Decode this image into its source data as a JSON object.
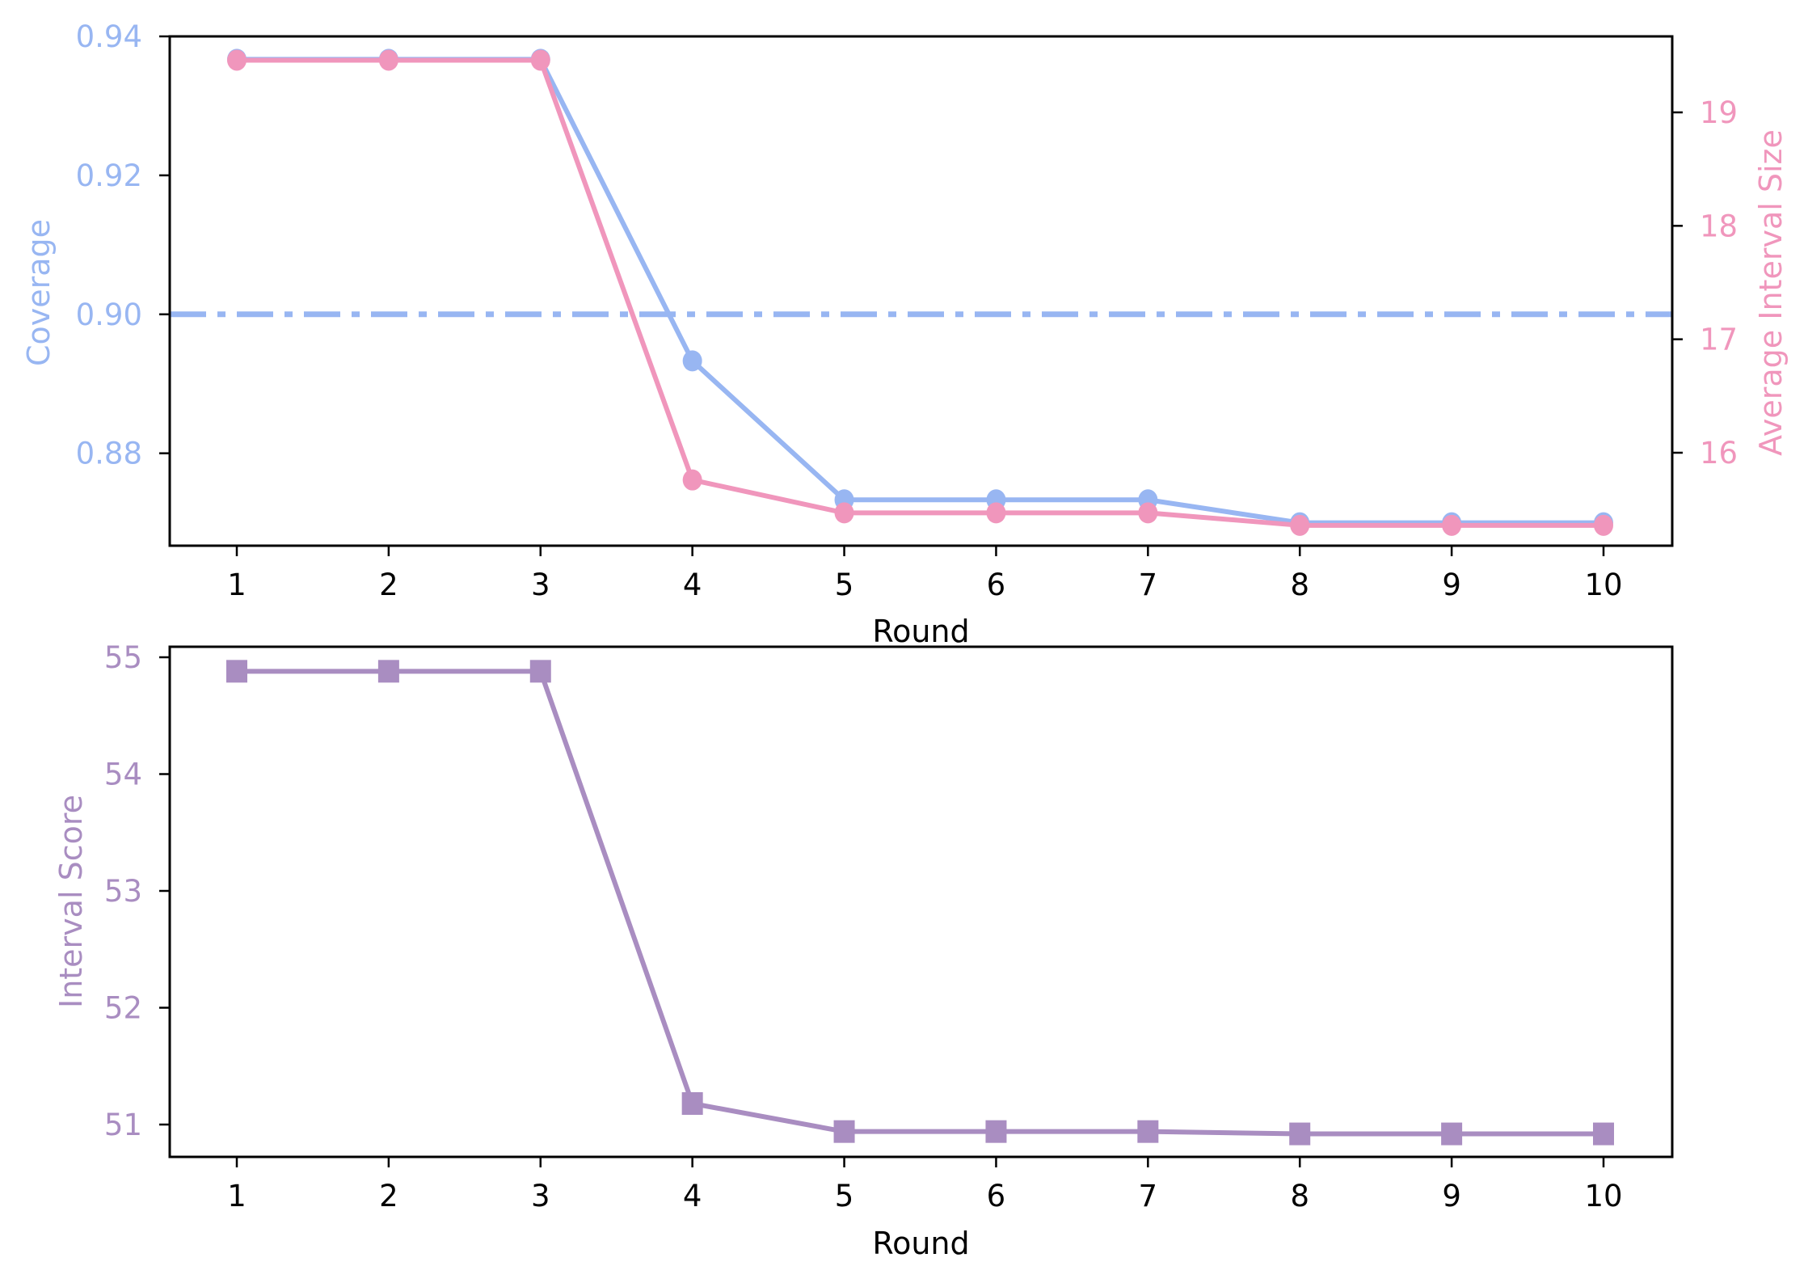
{
  "colors": {
    "coverage": "#98b6f2",
    "avg_interval_size": "#f096bc",
    "interval_score": "#a98dc1",
    "axis": "#000000",
    "text": "#000000"
  },
  "top_panel": {
    "xlabel": "Round",
    "ylabel_left": "Coverage",
    "ylabel_right": "Average Interval Size",
    "x_ticks": [
      "1",
      "2",
      "3",
      "4",
      "5",
      "6",
      "7",
      "8",
      "9",
      "10"
    ],
    "y_left_ticks": [
      "0.94",
      "0.92",
      "0.90",
      "0.88"
    ],
    "y_right_ticks": [
      "19",
      "18",
      "17",
      "16"
    ]
  },
  "bottom_panel": {
    "xlabel": "Round",
    "ylabel": "Interval Score",
    "x_ticks": [
      "1",
      "2",
      "3",
      "4",
      "5",
      "6",
      "7",
      "8",
      "9",
      "10"
    ],
    "y_ticks": [
      "55",
      "54",
      "53",
      "52",
      "51"
    ]
  },
  "chart_data": [
    {
      "type": "line",
      "title": "",
      "xlabel": "Round",
      "ylabel": "Coverage",
      "ylabel_right": "Average Interval Size",
      "x": [
        1,
        2,
        3,
        4,
        5,
        6,
        7,
        8,
        9,
        10
      ],
      "series": [
        {
          "name": "Coverage",
          "axis": "left",
          "marker": "circle",
          "color": "#98b6f2",
          "values": [
            0.9367,
            0.9367,
            0.9367,
            0.8933,
            0.8733,
            0.8733,
            0.8733,
            0.87,
            0.87,
            0.87
          ]
        },
        {
          "name": "Average Interval Size",
          "axis": "right",
          "marker": "circle",
          "color": "#f096bc",
          "values": [
            19.46,
            19.46,
            19.46,
            15.76,
            15.47,
            15.47,
            15.47,
            15.36,
            15.36,
            15.36
          ]
        }
      ],
      "reference_lines": [
        {
          "axis": "left",
          "y": 0.9,
          "style": "dashdot",
          "color": "#98b6f2"
        }
      ],
      "ylim": [
        0.8667,
        0.94
      ],
      "ylim_right": [
        15.2,
        19.71
      ],
      "grid": false,
      "legend": null
    },
    {
      "type": "line",
      "title": "",
      "xlabel": "Round",
      "ylabel": "Interval Score",
      "x": [
        1,
        2,
        3,
        4,
        5,
        6,
        7,
        8,
        9,
        10
      ],
      "series": [
        {
          "name": "Interval Score",
          "marker": "square",
          "color": "#a98dc1",
          "values": [
            54.88,
            54.88,
            54.88,
            51.18,
            50.94,
            50.94,
            50.94,
            50.92,
            50.92,
            50.92
          ]
        }
      ],
      "ylim": [
        50.72,
        55.09
      ],
      "grid": false,
      "legend": null
    }
  ]
}
